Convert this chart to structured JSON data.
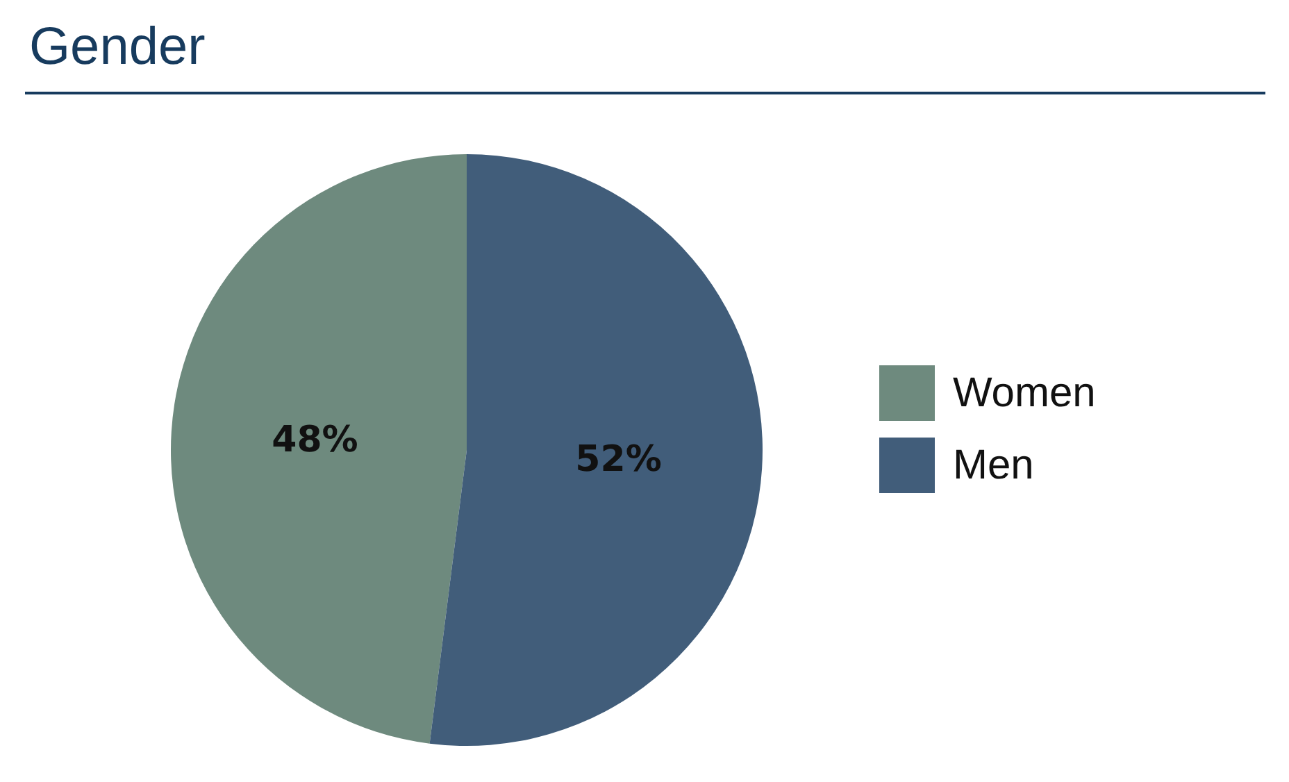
{
  "chart_data": {
    "type": "pie",
    "title": "Gender",
    "categories": [
      "Women",
      "Men"
    ],
    "values": [
      48,
      52
    ],
    "colors": [
      "#6e8a7e",
      "#415d7a"
    ],
    "value_labels": [
      "48%",
      "52%"
    ],
    "legend": "right"
  }
}
